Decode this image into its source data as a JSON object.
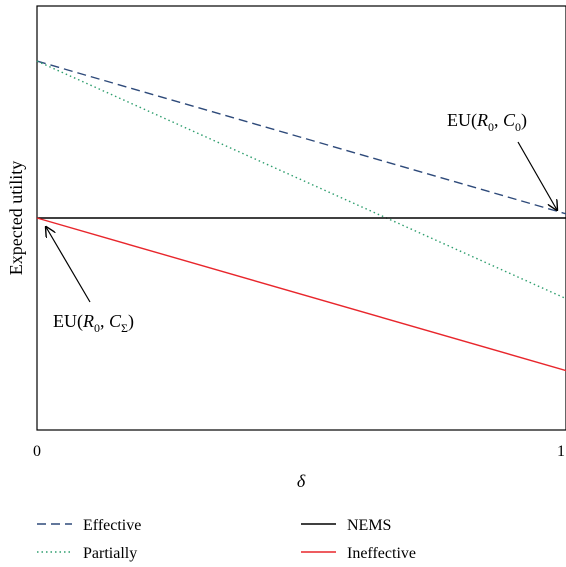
{
  "chart_data": {
    "type": "line",
    "title": "",
    "xlabel": "δ",
    "ylabel": "Expected utility",
    "xlim": [
      0,
      1
    ],
    "ylim": [
      0,
      1
    ],
    "x_ticks": [
      "0",
      "1"
    ],
    "y_ticks": [],
    "grid": false,
    "legend_position": "bottom",
    "series": [
      {
        "name": "Effective",
        "key": "effective",
        "color": "#2e4a7a",
        "dash": "dashed",
        "x": [
          0,
          1
        ],
        "y": [
          0.87,
          0.51
        ]
      },
      {
        "name": "Partially",
        "key": "partially",
        "color": "#2e9e6e",
        "dash": "dotted",
        "x": [
          0,
          1
        ],
        "y": [
          0.87,
          0.31
        ]
      },
      {
        "name": "NEMS",
        "key": "nems",
        "color": "#000000",
        "dash": "solid",
        "x": [
          0,
          1
        ],
        "y": [
          0.5,
          0.5
        ]
      },
      {
        "name": "Ineffective",
        "key": "ineffective",
        "color": "#e8262c",
        "dash": "solid",
        "x": [
          0,
          1
        ],
        "y": [
          0.5,
          0.14
        ]
      }
    ],
    "annotations": [
      {
        "key": "eu-r0-c0",
        "base": "EU(",
        "r": "R",
        "r_sub": "0",
        "sep": ", ",
        "c": "C",
        "c_sub": "0",
        "close": ")"
      },
      {
        "key": "eu-r0-csigma",
        "base": "EU(",
        "r": "R",
        "r_sub": "0",
        "sep": ", ",
        "c": "C",
        "c_sub": "Σ",
        "close": ")"
      }
    ]
  }
}
